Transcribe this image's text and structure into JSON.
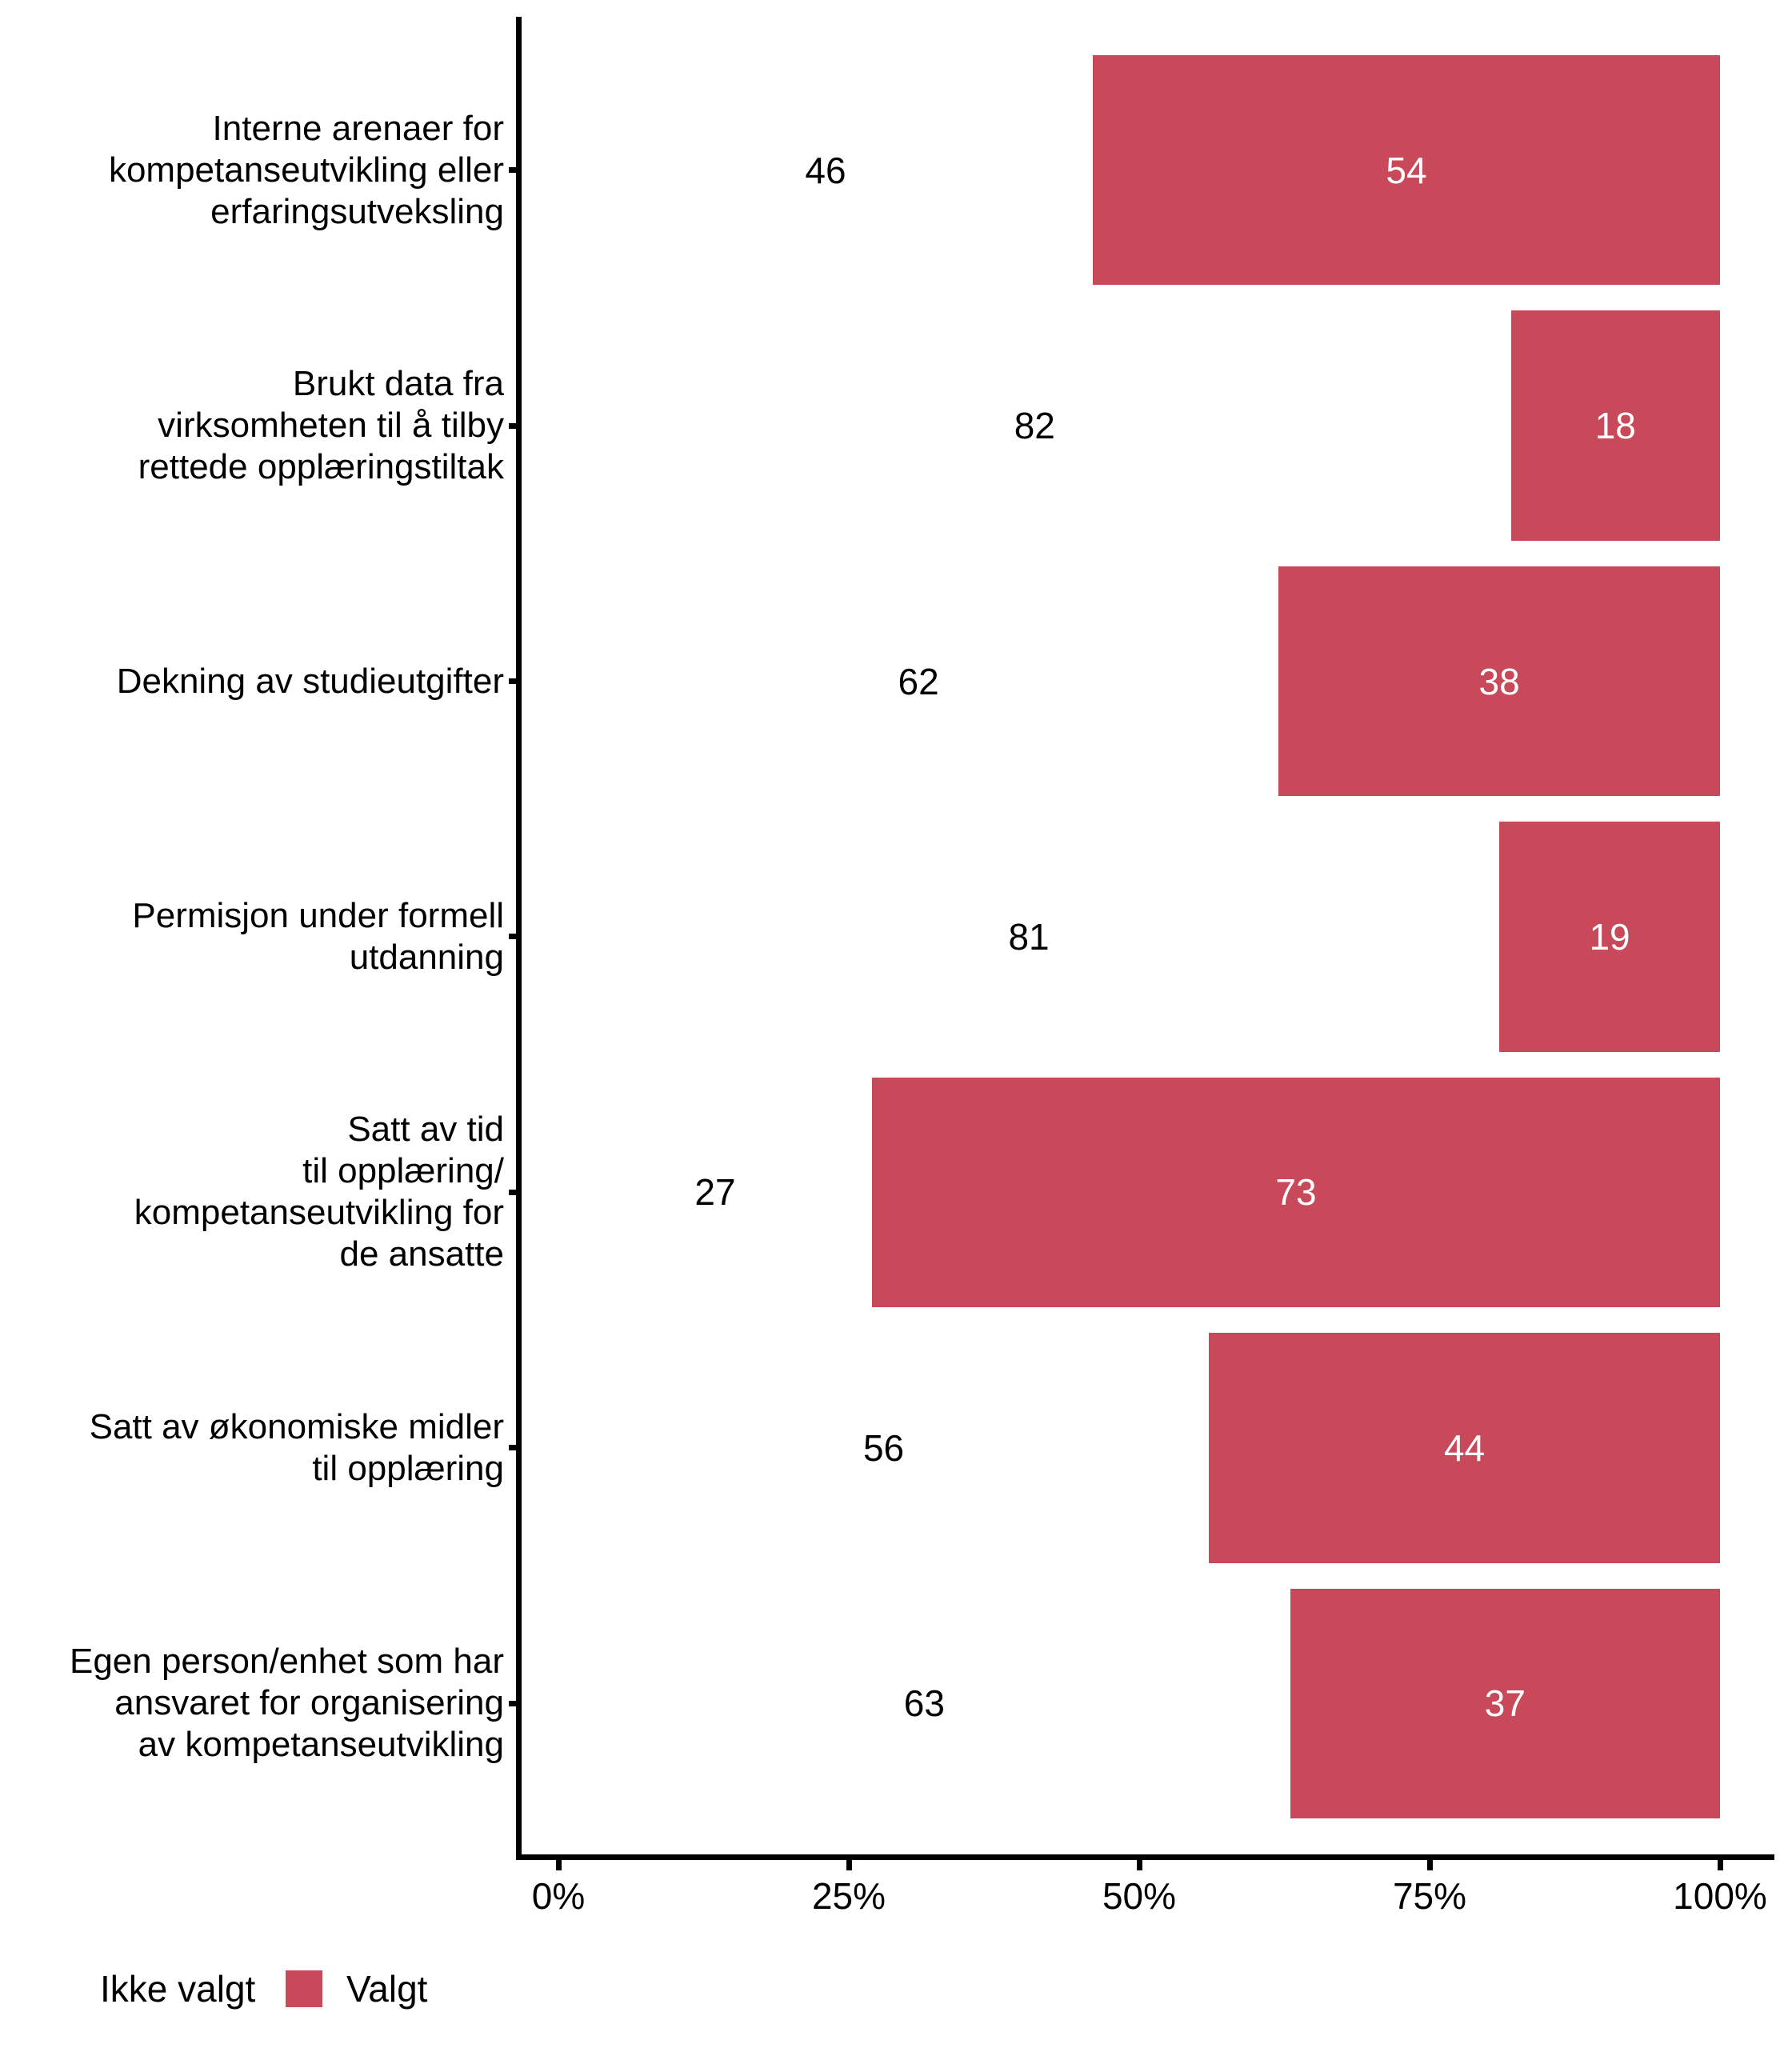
{
  "colors": {
    "background": "#FFFFFF",
    "text": "#000000",
    "accent": "#C84A5A",
    "on_accent": "#FFFFFF"
  },
  "chart_data": {
    "type": "bar",
    "orientation": "horizontal",
    "stacked": true,
    "value_unit": "percent",
    "categories": [
      {
        "lines": [
          "Interne arenaer for",
          "kompetanseutvikling eller",
          "erfaringsutveksling"
        ]
      },
      {
        "lines": [
          "Brukt data fra",
          "virksomheten til å tilby",
          "rettede opplæringstiltak"
        ]
      },
      {
        "lines": [
          "Dekning av studieutgifter"
        ]
      },
      {
        "lines": [
          "Permisjon under formell",
          "utdanning"
        ]
      },
      {
        "lines": [
          "Satt av tid",
          "til opplæring/",
          "kompetanseutvikling for",
          "de ansatte"
        ]
      },
      {
        "lines": [
          "Satt av økonomiske midler",
          "til opplæring"
        ]
      },
      {
        "lines": [
          "Egen person/enhet som har",
          "ansvaret for organisering",
          "av kompetanseutvikling"
        ]
      }
    ],
    "series": [
      {
        "name": "Ikke valgt",
        "color": "#FFFFFF",
        "values": [
          46,
          82,
          62,
          81,
          27,
          56,
          63
        ]
      },
      {
        "name": "Valgt",
        "color": "#C84A5A",
        "values": [
          54,
          18,
          38,
          19,
          73,
          44,
          37
        ]
      }
    ],
    "x_axis": {
      "range": [
        0,
        100
      ],
      "ticks": [
        {
          "value": 0,
          "label": "0%"
        },
        {
          "value": 25,
          "label": "25%"
        },
        {
          "value": 50,
          "label": "50%"
        },
        {
          "value": 75,
          "label": "75%"
        },
        {
          "value": 100,
          "label": "100%"
        }
      ]
    },
    "legend": {
      "position": "bottom-left",
      "entries": [
        {
          "label": "Ikke valgt",
          "color": "#FFFFFF"
        },
        {
          "label": "Valgt",
          "color": "#C84A5A"
        }
      ]
    }
  }
}
